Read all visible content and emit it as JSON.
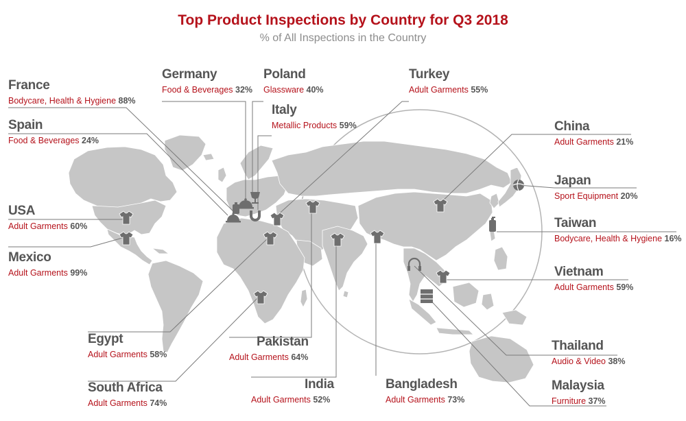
{
  "title": "Top Product Inspections by Country for Q3 2018",
  "subtitle": "% of All Inspections in the Country",
  "colors": {
    "title": "#b5121b",
    "category": "#b5121b",
    "name": "#555555",
    "land": "#c6c6c6",
    "icon": "#6e6e6e",
    "line": "#7a7a7a"
  },
  "countries": [
    {
      "id": "france",
      "name": "France",
      "category": "Bodycare, Health & Hygiene",
      "percent": "88%",
      "icon": "bottle-icon"
    },
    {
      "id": "spain",
      "name": "Spain",
      "category": "Food & Beverages",
      "percent": "24%",
      "icon": "cloche-icon"
    },
    {
      "id": "germany",
      "name": "Germany",
      "category": "Food & Beverages",
      "percent": "32%",
      "icon": "cloche-icon"
    },
    {
      "id": "poland",
      "name": "Poland",
      "category": "Glassware",
      "percent": "40%",
      "icon": "glass-icon"
    },
    {
      "id": "italy",
      "name": "Italy",
      "category": "Metallic Products",
      "percent": "59%",
      "icon": "magnet-icon"
    },
    {
      "id": "turkey",
      "name": "Turkey",
      "category": "Adult Garments",
      "percent": "55%",
      "icon": "tshirt-icon"
    },
    {
      "id": "usa",
      "name": "USA",
      "category": "Adult Garments",
      "percent": "60%",
      "icon": "tshirt-icon"
    },
    {
      "id": "mexico",
      "name": "Mexico",
      "category": "Adult Garments",
      "percent": "99%",
      "icon": "tshirt-icon"
    },
    {
      "id": "egypt",
      "name": "Egypt",
      "category": "Adult Garments",
      "percent": "58%",
      "icon": "tshirt-icon"
    },
    {
      "id": "south-africa",
      "name": "South Africa",
      "category": "Adult Garments",
      "percent": "74%",
      "icon": "tshirt-icon"
    },
    {
      "id": "pakistan",
      "name": "Pakistan",
      "category": "Adult Garments",
      "percent": "64%",
      "icon": "tshirt-icon"
    },
    {
      "id": "india",
      "name": "India",
      "category": "Adult Garments",
      "percent": "52%",
      "icon": "tshirt-icon"
    },
    {
      "id": "bangladesh",
      "name": "Bangladesh",
      "category": "Adult Garments",
      "percent": "73%",
      "icon": "tshirt-icon"
    },
    {
      "id": "china",
      "name": "China",
      "category": "Adult Garments",
      "percent": "21%",
      "icon": "tshirt-icon"
    },
    {
      "id": "japan",
      "name": "Japan",
      "category": "Sport Equipment",
      "percent": "20%",
      "icon": "ball-icon"
    },
    {
      "id": "taiwan",
      "name": "Taiwan",
      "category": "Bodycare, Health & Hygiene",
      "percent": "16%",
      "icon": "bottle-icon"
    },
    {
      "id": "vietnam",
      "name": "Vietnam",
      "category": "Adult Garments",
      "percent": "59%",
      "icon": "tshirt-icon"
    },
    {
      "id": "thailand",
      "name": "Thailand",
      "category": "Audio & Video",
      "percent": "38%",
      "icon": "headphones-icon"
    },
    {
      "id": "malaysia",
      "name": "Malaysia",
      "category": "Furniture",
      "percent": "37%",
      "icon": "cabinet-icon"
    }
  ]
}
